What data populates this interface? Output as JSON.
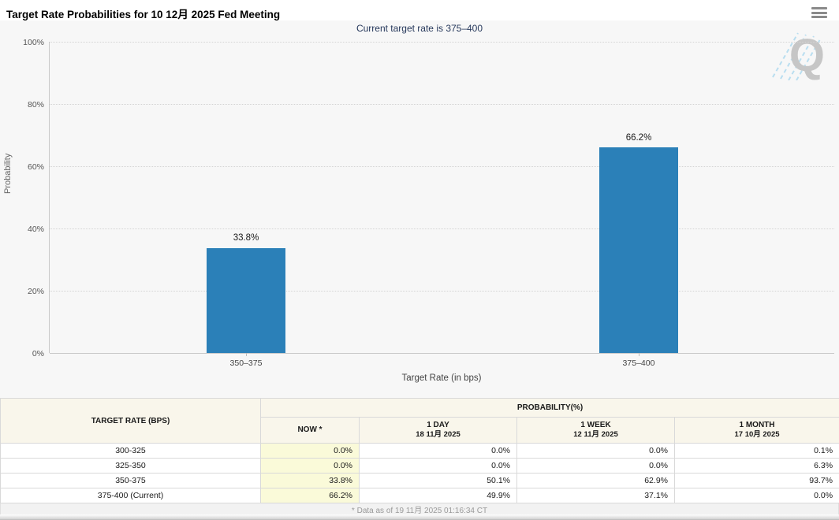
{
  "header": {
    "title": "Target Rate Probabilities for 10 12月 2025 Fed Meeting"
  },
  "chart": {
    "subtitle": "Current target rate is 375–400",
    "watermark_letter": "Q"
  },
  "chart_data": {
    "type": "bar",
    "title": "Target Rate Probabilities for 10 12月 2025 Fed Meeting",
    "categories": [
      "350–375",
      "375–400"
    ],
    "values": [
      33.8,
      66.2
    ],
    "value_labels": [
      "33.8%",
      "66.2%"
    ],
    "xlabel": "Target Rate (in bps)",
    "ylabel": "Probability",
    "ylim": [
      0,
      100
    ],
    "yticks": [
      0,
      20,
      40,
      60,
      80,
      100
    ],
    "ytick_labels": [
      "0%",
      "20%",
      "40%",
      "60%",
      "80%",
      "100%"
    ],
    "grid": "dotted-horizontal",
    "legend": "none",
    "bar_color": "#2b80b8"
  },
  "table": {
    "header": {
      "target_rate": "TARGET RATE (BPS)",
      "probability_group": "PROBABILITY(%)",
      "now": "NOW *",
      "one_day": {
        "label": "1 DAY",
        "date": "18 11月 2025"
      },
      "one_week": {
        "label": "1 WEEK",
        "date": "12 11月 2025"
      },
      "one_month": {
        "label": "1 MONTH",
        "date": "17 10月 2025"
      }
    },
    "rows": [
      {
        "rate": "300-325",
        "now": "0.0%",
        "one_day": "0.0%",
        "one_week": "0.0%",
        "one_month": "0.1%"
      },
      {
        "rate": "325-350",
        "now": "0.0%",
        "one_day": "0.0%",
        "one_week": "0.0%",
        "one_month": "6.3%"
      },
      {
        "rate": "350-375",
        "now": "33.8%",
        "one_day": "50.1%",
        "one_week": "62.9%",
        "one_month": "93.7%"
      },
      {
        "rate": "375-400 (Current)",
        "now": "66.2%",
        "one_day": "49.9%",
        "one_week": "37.1%",
        "one_month": "0.0%"
      }
    ],
    "footnote": "* Data as of 19 11月 2025 01:16:34 CT"
  }
}
